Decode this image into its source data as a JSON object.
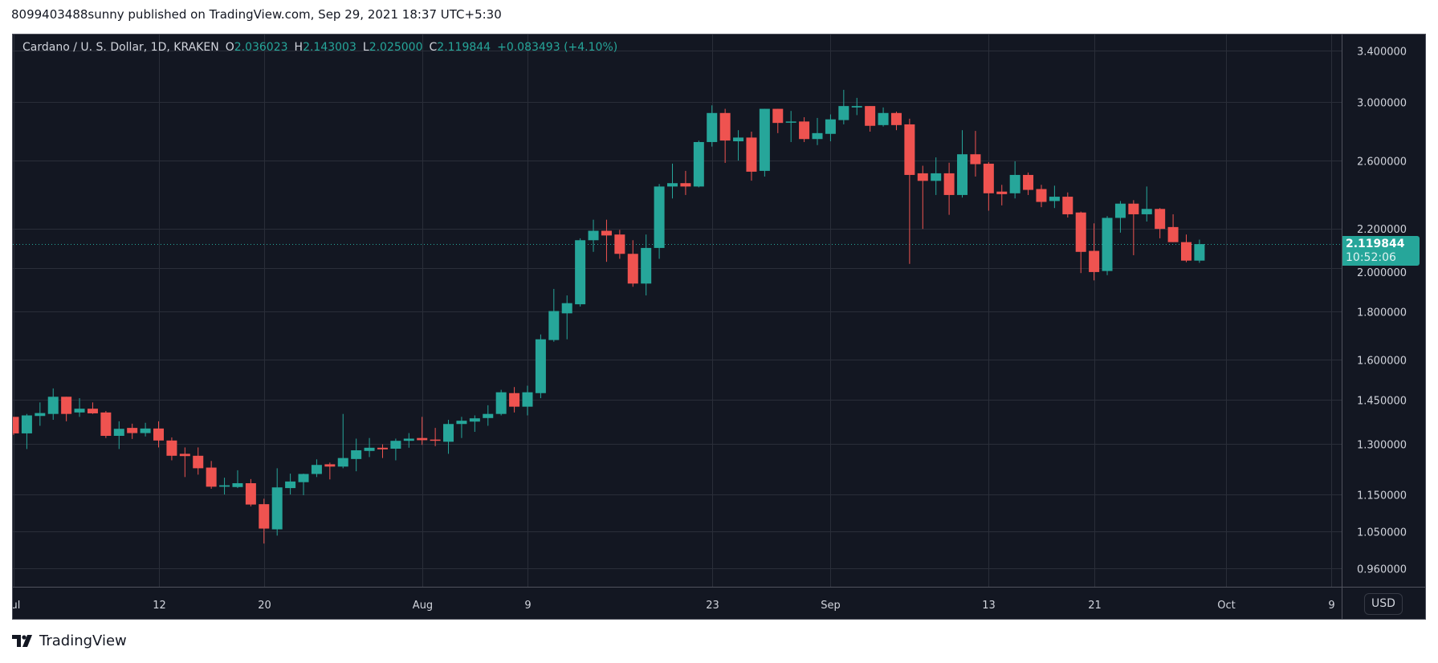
{
  "publisher_line": "8099403488sunny published on TradingView.com, Sep 29, 2021 18:37 UTC+5:30",
  "legend": {
    "symbol": "Cardano / U. S. Dollar, 1D, KRAKEN",
    "o_label": "O",
    "o": "2.036023",
    "h_label": "H",
    "h": "2.143003",
    "l_label": "L",
    "l": "2.025000",
    "c_label": "C",
    "c": "2.119844",
    "change": "+0.083493 (+4.10%)"
  },
  "currency_button": "USD",
  "last_price_tag": {
    "price": "2.119844",
    "countdown": "10:52:06"
  },
  "footer_brand": "TradingView",
  "colors": {
    "up": "#26a69a",
    "down": "#ef5350",
    "background": "#131722",
    "grid": "#2a2e39",
    "axis_text": "#d1d4dc"
  },
  "chart_data": {
    "type": "candlestick",
    "title": "Cardano / U. S. Dollar, 1D, KRAKEN",
    "scale": "log",
    "ylim": [
      0.93,
      3.5
    ],
    "xlim_days_from_jul1": [
      -1,
      103
    ],
    "last_price": 2.119844,
    "y_ticks": [
      "3.400000",
      "3.000000",
      "2.600000",
      "2.200000",
      "2.000000",
      "1.800000",
      "1.600000",
      "1.450000",
      "1.300000",
      "1.150000",
      "1.050000",
      "0.960000"
    ],
    "x_ticks": [
      {
        "label": "Jul",
        "day": 0
      },
      {
        "label": "12",
        "day": 11
      },
      {
        "label": "20",
        "day": 19
      },
      {
        "label": "Aug",
        "day": 31
      },
      {
        "label": "9",
        "day": 39
      },
      {
        "label": "23",
        "day": 53
      },
      {
        "label": "Sep",
        "day": 62
      },
      {
        "label": "13",
        "day": 74
      },
      {
        "label": "21",
        "day": 82
      },
      {
        "label": "Oct",
        "day": 92
      },
      {
        "label": "9",
        "day": 100
      }
    ],
    "fields": [
      "date",
      "open",
      "high",
      "low",
      "close"
    ],
    "candles": [
      [
        "2021-07-01",
        1.39,
        1.39,
        1.33,
        1.335
      ],
      [
        "2021-07-02",
        1.335,
        1.4,
        1.285,
        1.395
      ],
      [
        "2021-07-03",
        1.393,
        1.44,
        1.36,
        1.403
      ],
      [
        "2021-07-04",
        1.4,
        1.49,
        1.38,
        1.46
      ],
      [
        "2021-07-05",
        1.46,
        1.46,
        1.375,
        1.4
      ],
      [
        "2021-07-06",
        1.405,
        1.455,
        1.39,
        1.418
      ],
      [
        "2021-07-07",
        1.418,
        1.44,
        1.4,
        1.402
      ],
      [
        "2021-07-08",
        1.405,
        1.41,
        1.32,
        1.327
      ],
      [
        "2021-07-09",
        1.327,
        1.375,
        1.285,
        1.35
      ],
      [
        "2021-07-10",
        1.353,
        1.367,
        1.317,
        1.336
      ],
      [
        "2021-07-11",
        1.336,
        1.37,
        1.325,
        1.351
      ],
      [
        "2021-07-12",
        1.351,
        1.375,
        1.29,
        1.312
      ],
      [
        "2021-07-13",
        1.312,
        1.322,
        1.25,
        1.264
      ],
      [
        "2021-07-14",
        1.27,
        1.29,
        1.2,
        1.263
      ],
      [
        "2021-07-15",
        1.264,
        1.29,
        1.207,
        1.226
      ],
      [
        "2021-07-16",
        1.228,
        1.248,
        1.166,
        1.172
      ],
      [
        "2021-07-17",
        1.172,
        1.198,
        1.15,
        1.176
      ],
      [
        "2021-07-18",
        1.171,
        1.22,
        1.168,
        1.182
      ],
      [
        "2021-07-19",
        1.182,
        1.194,
        1.117,
        1.122
      ],
      [
        "2021-07-20",
        1.123,
        1.138,
        1.02,
        1.058
      ],
      [
        "2021-07-21",
        1.056,
        1.226,
        1.04,
        1.17
      ],
      [
        "2021-07-22",
        1.168,
        1.21,
        1.15,
        1.187
      ],
      [
        "2021-07-23",
        1.185,
        1.21,
        1.148,
        1.209
      ],
      [
        "2021-07-24",
        1.209,
        1.253,
        1.2,
        1.236
      ],
      [
        "2021-07-25",
        1.238,
        1.243,
        1.193,
        1.231
      ],
      [
        "2021-07-26",
        1.231,
        1.4,
        1.226,
        1.257
      ],
      [
        "2021-07-27",
        1.254,
        1.318,
        1.217,
        1.281
      ],
      [
        "2021-07-28",
        1.279,
        1.32,
        1.26,
        1.289
      ],
      [
        "2021-07-29",
        1.289,
        1.3,
        1.257,
        1.284
      ],
      [
        "2021-07-30",
        1.286,
        1.318,
        1.25,
        1.311
      ],
      [
        "2021-07-31",
        1.311,
        1.336,
        1.289,
        1.318
      ],
      [
        "2021-08-01",
        1.32,
        1.39,
        1.298,
        1.313
      ],
      [
        "2021-08-02",
        1.315,
        1.353,
        1.294,
        1.311
      ],
      [
        "2021-08-03",
        1.308,
        1.38,
        1.27,
        1.366
      ],
      [
        "2021-08-04",
        1.366,
        1.39,
        1.32,
        1.377
      ],
      [
        "2021-08-05",
        1.374,
        1.395,
        1.34,
        1.385
      ],
      [
        "2021-08-06",
        1.386,
        1.43,
        1.36,
        1.4
      ],
      [
        "2021-08-07",
        1.4,
        1.485,
        1.395,
        1.476
      ],
      [
        "2021-08-08",
        1.473,
        1.495,
        1.405,
        1.425
      ],
      [
        "2021-08-09",
        1.425,
        1.5,
        1.395,
        1.476
      ],
      [
        "2021-08-10",
        1.473,
        1.7,
        1.455,
        1.68
      ],
      [
        "2021-08-11",
        1.677,
        1.9,
        1.67,
        1.8
      ],
      [
        "2021-08-12",
        1.79,
        1.87,
        1.68,
        1.835
      ],
      [
        "2021-08-13",
        1.83,
        2.15,
        1.82,
        2.14
      ],
      [
        "2021-08-14",
        2.14,
        2.25,
        2.08,
        2.19
      ],
      [
        "2021-08-15",
        2.19,
        2.25,
        2.03,
        2.165
      ],
      [
        "2021-08-16",
        2.17,
        2.195,
        2.045,
        2.07
      ],
      [
        "2021-08-17",
        2.07,
        2.14,
        1.91,
        1.925
      ],
      [
        "2021-08-18",
        1.925,
        2.17,
        1.87,
        2.1
      ],
      [
        "2021-08-19",
        2.1,
        2.455,
        2.045,
        2.44
      ],
      [
        "2021-08-20",
        2.44,
        2.58,
        2.37,
        2.46
      ],
      [
        "2021-08-21",
        2.46,
        2.535,
        2.39,
        2.44
      ],
      [
        "2021-08-22",
        2.44,
        2.73,
        2.435,
        2.72
      ],
      [
        "2021-08-23",
        2.72,
        2.975,
        2.69,
        2.92
      ],
      [
        "2021-08-24",
        2.92,
        2.95,
        2.585,
        2.73
      ],
      [
        "2021-08-25",
        2.725,
        2.8,
        2.6,
        2.75
      ],
      [
        "2021-08-26",
        2.75,
        2.79,
        2.475,
        2.53
      ],
      [
        "2021-08-27",
        2.535,
        2.95,
        2.5,
        2.95
      ],
      [
        "2021-08-28",
        2.95,
        2.95,
        2.78,
        2.85
      ],
      [
        "2021-08-29",
        2.855,
        2.935,
        2.72,
        2.86
      ],
      [
        "2021-08-30",
        2.86,
        2.89,
        2.72,
        2.74
      ],
      [
        "2021-08-31",
        2.74,
        2.885,
        2.7,
        2.78
      ],
      [
        "2021-09-01",
        2.775,
        2.91,
        2.725,
        2.875
      ],
      [
        "2021-09-02",
        2.87,
        3.09,
        2.84,
        2.97
      ],
      [
        "2021-09-03",
        2.96,
        3.03,
        2.905,
        2.97
      ],
      [
        "2021-09-04",
        2.97,
        2.97,
        2.79,
        2.83
      ],
      [
        "2021-09-05",
        2.835,
        2.96,
        2.825,
        2.92
      ],
      [
        "2021-09-06",
        2.92,
        2.93,
        2.8,
        2.835
      ],
      [
        "2021-09-07",
        2.84,
        2.88,
        2.02,
        2.51
      ],
      [
        "2021-09-08",
        2.52,
        2.567,
        2.2,
        2.474
      ],
      [
        "2021-09-09",
        2.474,
        2.62,
        2.39,
        2.52
      ],
      [
        "2021-09-10",
        2.52,
        2.586,
        2.277,
        2.39
      ],
      [
        "2021-09-11",
        2.39,
        2.8,
        2.375,
        2.64
      ],
      [
        "2021-09-12",
        2.64,
        2.795,
        2.5,
        2.577
      ],
      [
        "2021-09-13",
        2.58,
        2.59,
        2.3,
        2.4
      ],
      [
        "2021-09-14",
        2.41,
        2.45,
        2.33,
        2.395
      ],
      [
        "2021-09-15",
        2.4,
        2.595,
        2.37,
        2.51
      ],
      [
        "2021-09-16",
        2.51,
        2.525,
        2.39,
        2.42
      ],
      [
        "2021-09-17",
        2.425,
        2.45,
        2.32,
        2.35
      ],
      [
        "2021-09-18",
        2.355,
        2.445,
        2.315,
        2.38
      ],
      [
        "2021-09-19",
        2.38,
        2.405,
        2.262,
        2.28
      ],
      [
        "2021-09-20",
        2.29,
        2.295,
        1.975,
        2.08
      ],
      [
        "2021-09-21",
        2.085,
        2.23,
        1.94,
        1.98
      ],
      [
        "2021-09-22",
        1.985,
        2.27,
        1.965,
        2.26
      ],
      [
        "2021-09-23",
        2.26,
        2.355,
        2.18,
        2.34
      ],
      [
        "2021-09-24",
        2.34,
        2.36,
        2.063,
        2.28
      ],
      [
        "2021-09-25",
        2.28,
        2.44,
        2.24,
        2.31
      ],
      [
        "2021-09-26",
        2.31,
        2.315,
        2.15,
        2.2
      ],
      [
        "2021-09-27",
        2.21,
        2.28,
        2.13,
        2.13
      ],
      [
        "2021-09-28",
        2.13,
        2.17,
        2.028,
        2.036
      ],
      [
        "2021-09-29",
        2.036023,
        2.143003,
        2.025,
        2.119844
      ]
    ]
  }
}
